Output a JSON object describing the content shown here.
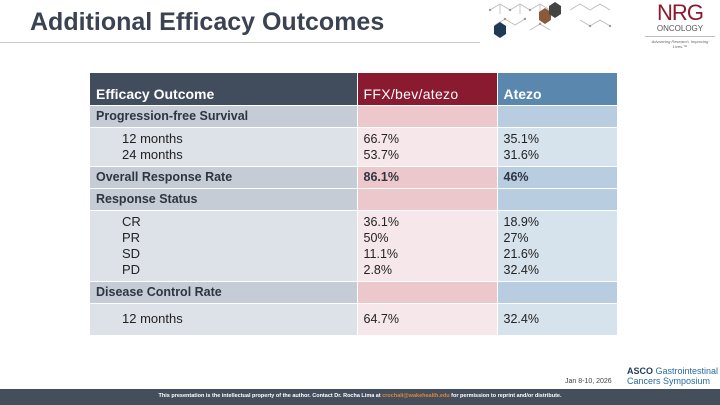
{
  "title": "Additional Efficacy Outcomes",
  "logo": {
    "name": "NRG",
    "sub": "ONCOLOGY",
    "tagline": "Advancing Research. Improving Lives.™"
  },
  "table": {
    "headers": [
      "Efficacy Outcome",
      "FFX/bev/atezo",
      "Atezo"
    ],
    "pfs": {
      "label": "Progression-free Survival",
      "rows": [
        {
          "label": "12 months",
          "a": "66.7%",
          "b": "35.1%"
        },
        {
          "label": "24 months",
          "a": "53.7%",
          "b": "31.6%"
        }
      ]
    },
    "orr": {
      "label": "Overall Response Rate",
      "a": "86.1%",
      "b": "46%"
    },
    "rs": {
      "label": "Response Status",
      "rows": [
        {
          "label": "CR",
          "a": "36.1%",
          "b": "18.9%"
        },
        {
          "label": "PR",
          "a": "50%",
          "b": "27%"
        },
        {
          "label": "SD",
          "a": "11.1%",
          "b": "21.6%"
        },
        {
          "label": "PD",
          "a": "2.8%",
          "b": "32.4%"
        }
      ]
    },
    "dcr": {
      "label": "Disease Control Rate",
      "rows": [
        {
          "label": "12 months",
          "a": "64.7%",
          "b": "32.4%"
        }
      ]
    }
  },
  "date": "Jan 8-10, 2026",
  "asco": {
    "bold": "ASCO",
    "rest1": "Gastrointestinal",
    "rest2": "Cancers Symposium"
  },
  "footer": {
    "pre": "This presentation is the intellectual property of the author.  Contact Dr. Rocha Lima at ",
    "email": "crochali@wakehealth.edu",
    "post": " for permission to reprint and/or distribute."
  }
}
